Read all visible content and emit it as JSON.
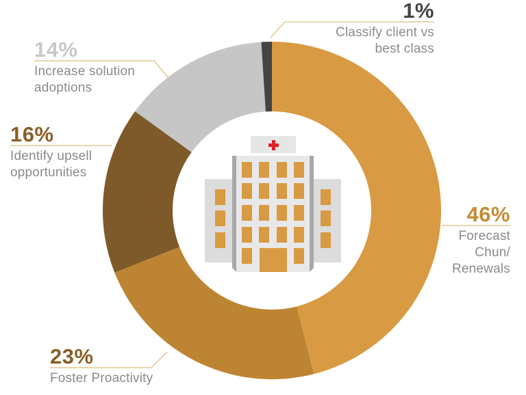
{
  "chart_data": {
    "type": "pie",
    "subtype": "donut",
    "title": "",
    "start_angle_deg": 0,
    "direction": "clockwise",
    "center_icon": "hospital-building-icon",
    "slices": [
      {
        "label": "Forecast Chun/ Renewals",
        "value": 46,
        "percent_label": "46%",
        "color": "#D89A42"
      },
      {
        "label": "Foster Proactivity",
        "value": 23,
        "percent_label": "23%",
        "color": "#BD8533"
      },
      {
        "label": "Identify upsell opportunities",
        "value": 16,
        "percent_label": "16%",
        "color": "#7E5A2A"
      },
      {
        "label": "Increase solution adoptions",
        "value": 14,
        "percent_label": "14%",
        "color": "#C6C6C6"
      },
      {
        "label": "Classify client vs best class",
        "value": 1,
        "percent_label": "1%",
        "color": "#444444"
      }
    ],
    "legend_position": "callouts"
  },
  "labels": {
    "forecast": {
      "pct": "46%",
      "line1": "Forecast",
      "line2": "Chun/",
      "line3": "Renewals",
      "pct_color": "#C48A35"
    },
    "foster": {
      "pct": "23%",
      "line1": "Foster Proactivity",
      "pct_color": "#8A5E26"
    },
    "upsell": {
      "pct": "16%",
      "line1": "Identify upsell",
      "line2": "opportunities",
      "pct_color": "#8A5E26"
    },
    "adoption": {
      "pct": "14%",
      "line1": "Increase solution",
      "line2": "adoptions",
      "pct_color": "#C8C8C8"
    },
    "classify": {
      "pct": "1%",
      "line1": "Classify client vs",
      "line2": "best class",
      "pct_color": "#444444"
    }
  },
  "colors": {
    "leader_line": "#E3C58E",
    "label_text": "#8A8A8A",
    "building_wall": "#E6E6E6",
    "building_shadow": "#A8A8A8",
    "window": "#D89A42",
    "cross": "#E0202A"
  }
}
